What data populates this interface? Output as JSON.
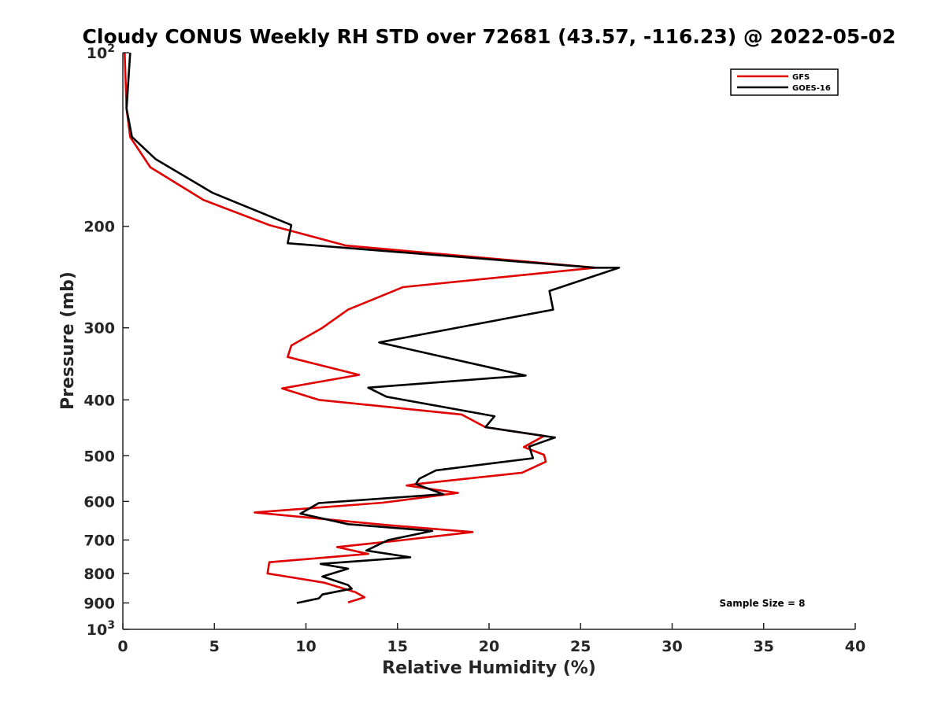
{
  "chart_data": {
    "type": "line",
    "title": "Cloudy CONUS Weekly RH STD over 72681 (43.57, -116.23) @ 2022-05-02",
    "xlabel": "Relative Humidity (%)",
    "ylabel": "Pressure (mb)",
    "xlim": [
      0,
      40
    ],
    "ylim": [
      100,
      1000
    ],
    "y_scale": "log",
    "y_reversed": true,
    "grid": false,
    "legend_position": "top-right",
    "x_ticks": [
      0,
      5,
      10,
      15,
      20,
      25,
      30,
      35,
      40
    ],
    "x_tick_labels": [
      "0",
      "5",
      "10",
      "15",
      "20",
      "25",
      "30",
      "35",
      "40"
    ],
    "y_ticks": [
      100,
      200,
      300,
      400,
      500,
      600,
      700,
      800,
      900,
      1000
    ],
    "y_tick_labels": [
      "10^2",
      "200",
      "300",
      "400",
      "500",
      "600",
      "700",
      "800",
      "900",
      "10^3"
    ],
    "annotation": "Sample Size = 8",
    "series": [
      {
        "name": "GFS",
        "color": "#e00000",
        "points": [
          [
            0.1,
            100
          ],
          [
            0.2,
            125
          ],
          [
            0.4,
            140
          ],
          [
            1.5,
            158
          ],
          [
            4.4,
            180
          ],
          [
            8.0,
            199
          ],
          [
            12.2,
            216
          ],
          [
            25.8,
            236
          ],
          [
            15.3,
            255
          ],
          [
            12.3,
            279
          ],
          [
            10.9,
            300
          ],
          [
            9.2,
            322
          ],
          [
            9.0,
            337
          ],
          [
            12.9,
            362
          ],
          [
            8.7,
            382
          ],
          [
            10.7,
            400
          ],
          [
            18.5,
            424
          ],
          [
            19.8,
            446
          ],
          [
            23.0,
            462
          ],
          [
            21.9,
            483
          ],
          [
            23.0,
            498
          ],
          [
            23.1,
            512
          ],
          [
            21.8,
            535
          ],
          [
            16.0,
            560
          ],
          [
            15.5,
            563
          ],
          [
            18.3,
            580
          ],
          [
            14.2,
            603
          ],
          [
            7.2,
            627
          ],
          [
            14.3,
            659
          ],
          [
            19.1,
            678
          ],
          [
            15.3,
            700
          ],
          [
            11.7,
            720
          ],
          [
            13.4,
            740
          ],
          [
            8.0,
            765
          ],
          [
            7.9,
            800
          ],
          [
            11.0,
            830
          ],
          [
            12.7,
            862
          ],
          [
            13.2,
            880
          ],
          [
            12.3,
            898
          ]
        ]
      },
      {
        "name": "GOES-16",
        "color": "#000000",
        "points": [
          [
            0.4,
            100
          ],
          [
            0.2,
            125
          ],
          [
            0.5,
            140
          ],
          [
            1.8,
            153
          ],
          [
            4.9,
            175
          ],
          [
            9.2,
            199
          ],
          [
            9.0,
            214
          ],
          [
            25.8,
            236
          ],
          [
            27.1,
            236
          ],
          [
            23.3,
            259
          ],
          [
            23.5,
            279
          ],
          [
            19.2,
            296
          ],
          [
            14.0,
            318
          ],
          [
            22.0,
            363
          ],
          [
            13.4,
            381
          ],
          [
            14.4,
            395
          ],
          [
            20.3,
            427
          ],
          [
            19.8,
            446
          ],
          [
            23.6,
            465
          ],
          [
            22.2,
            482
          ],
          [
            22.4,
            505
          ],
          [
            17.1,
            530
          ],
          [
            16.2,
            548
          ],
          [
            16.0,
            560
          ],
          [
            17.5,
            583
          ],
          [
            10.7,
            604
          ],
          [
            9.7,
            630
          ],
          [
            12.3,
            657
          ],
          [
            16.9,
            675
          ],
          [
            14.5,
            700
          ],
          [
            13.3,
            730
          ],
          [
            15.7,
            750
          ],
          [
            10.8,
            770
          ],
          [
            12.3,
            785
          ],
          [
            10.9,
            810
          ],
          [
            12.3,
            838
          ],
          [
            12.5,
            850
          ],
          [
            10.9,
            870
          ],
          [
            10.7,
            884
          ],
          [
            9.5,
            900
          ]
        ]
      }
    ]
  }
}
